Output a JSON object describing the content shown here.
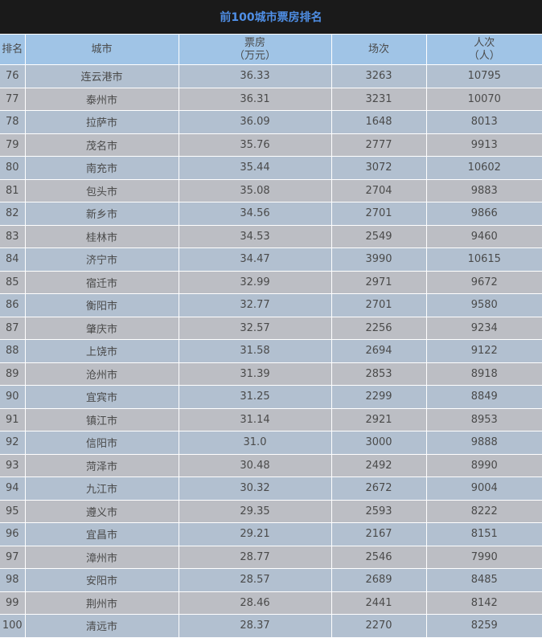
{
  "title": "前100城市票房排名",
  "headers": {
    "rank": "排名",
    "city": "城市",
    "box": "票房",
    "box_unit": "（万元）",
    "shows": "场次",
    "people": "人次",
    "people_unit": "（人）"
  },
  "rows": [
    [
      "76",
      "连云港市",
      "36.33",
      "3263",
      "10795"
    ],
    [
      "77",
      "泰州市",
      "36.31",
      "3231",
      "10070"
    ],
    [
      "78",
      "拉萨市",
      "36.09",
      "1648",
      "8013"
    ],
    [
      "79",
      "茂名市",
      "35.76",
      "2777",
      "9913"
    ],
    [
      "80",
      "南充市",
      "35.44",
      "3072",
      "10602"
    ],
    [
      "81",
      "包头市",
      "35.08",
      "2704",
      "9883"
    ],
    [
      "82",
      "新乡市",
      "34.56",
      "2701",
      "9866"
    ],
    [
      "83",
      "桂林市",
      "34.53",
      "2549",
      "9460"
    ],
    [
      "84",
      "济宁市",
      "34.47",
      "3990",
      "10615"
    ],
    [
      "85",
      "宿迁市",
      "32.99",
      "2971",
      "9672"
    ],
    [
      "86",
      "衡阳市",
      "32.77",
      "2701",
      "9580"
    ],
    [
      "87",
      "肇庆市",
      "32.57",
      "2256",
      "9234"
    ],
    [
      "88",
      "上饶市",
      "31.58",
      "2694",
      "9122"
    ],
    [
      "89",
      "沧州市",
      "31.39",
      "2853",
      "8918"
    ],
    [
      "90",
      "宜宾市",
      "31.25",
      "2299",
      "8849"
    ],
    [
      "91",
      "镇江市",
      "31.14",
      "2921",
      "8953"
    ],
    [
      "92",
      "信阳市",
      "31.0",
      "3000",
      "9888"
    ],
    [
      "93",
      "菏泽市",
      "30.48",
      "2492",
      "8990"
    ],
    [
      "94",
      "九江市",
      "30.32",
      "2672",
      "9004"
    ],
    [
      "95",
      "遵义市",
      "29.35",
      "2593",
      "8222"
    ],
    [
      "96",
      "宜昌市",
      "29.21",
      "2167",
      "8151"
    ],
    [
      "97",
      "漳州市",
      "28.77",
      "2546",
      "7990"
    ],
    [
      "98",
      "安阳市",
      "28.57",
      "2689",
      "8485"
    ],
    [
      "99",
      "荆州市",
      "28.46",
      "2441",
      "8142"
    ],
    [
      "100",
      "清远市",
      "28.37",
      "2270",
      "8259"
    ]
  ]
}
